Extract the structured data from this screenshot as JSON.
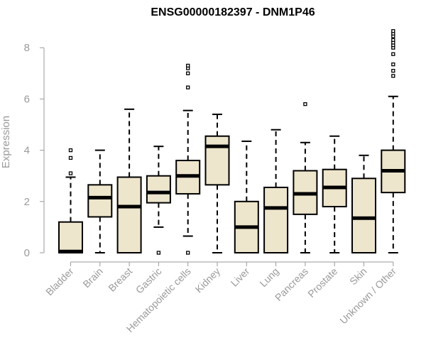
{
  "chart_data": {
    "type": "box",
    "title": "ENSG00000182397 - DNM1P46",
    "ylabel": "Expression",
    "ylim": [
      0,
      8.7
    ],
    "yticks": [
      0,
      2,
      4,
      6,
      8
    ],
    "box_fill": "#ede5cc",
    "box_stroke": "#000000",
    "axis_color": "#9a9a9a",
    "categories": [
      "Bladder",
      "Brain",
      "Breast",
      "Gastric",
      "Hematopoietic cells",
      "Kidney",
      "Liver",
      "Lung",
      "Pancreas",
      "Prostate",
      "Skin",
      "Unknown / Other"
    ],
    "boxes": [
      {
        "min": 0,
        "q1": 0,
        "median": 0.05,
        "q3": 1.2,
        "max": 2.95,
        "outliers": [
          3.1,
          3.7,
          4.0
        ]
      },
      {
        "min": 0,
        "q1": 1.4,
        "median": 2.15,
        "q3": 2.65,
        "max": 4.0,
        "outliers": []
      },
      {
        "min": 0,
        "q1": 0,
        "median": 1.8,
        "q3": 2.95,
        "max": 5.6,
        "outliers": []
      },
      {
        "min": 1.0,
        "q1": 1.95,
        "median": 2.35,
        "q3": 3.0,
        "max": 4.15,
        "outliers": [
          0.0
        ]
      },
      {
        "min": 0.65,
        "q1": 2.3,
        "median": 3.0,
        "q3": 3.6,
        "max": 5.55,
        "outliers": [
          0.0,
          6.45,
          7.0,
          7.2,
          7.3
        ]
      },
      {
        "min": 0,
        "q1": 2.65,
        "median": 4.15,
        "q3": 4.55,
        "max": 5.4,
        "outliers": []
      },
      {
        "min": 0,
        "q1": 0,
        "median": 1.0,
        "q3": 2.0,
        "max": 4.35,
        "outliers": []
      },
      {
        "min": 0,
        "q1": 0,
        "median": 1.75,
        "q3": 2.55,
        "max": 4.8,
        "outliers": []
      },
      {
        "min": 0,
        "q1": 1.5,
        "median": 2.3,
        "q3": 3.2,
        "max": 4.3,
        "outliers": [
          5.8
        ]
      },
      {
        "min": 0,
        "q1": 1.8,
        "median": 2.55,
        "q3": 3.25,
        "max": 4.55,
        "outliers": []
      },
      {
        "min": 0,
        "q1": 0,
        "median": 1.35,
        "q3": 2.9,
        "max": 3.8,
        "outliers": []
      },
      {
        "min": 0,
        "q1": 2.35,
        "median": 3.2,
        "q3": 4.0,
        "max": 6.1,
        "outliers": [
          6.9,
          7.1,
          7.35,
          7.75,
          8.0,
          8.1,
          8.2,
          8.3,
          8.45,
          8.55,
          8.65
        ]
      }
    ]
  }
}
